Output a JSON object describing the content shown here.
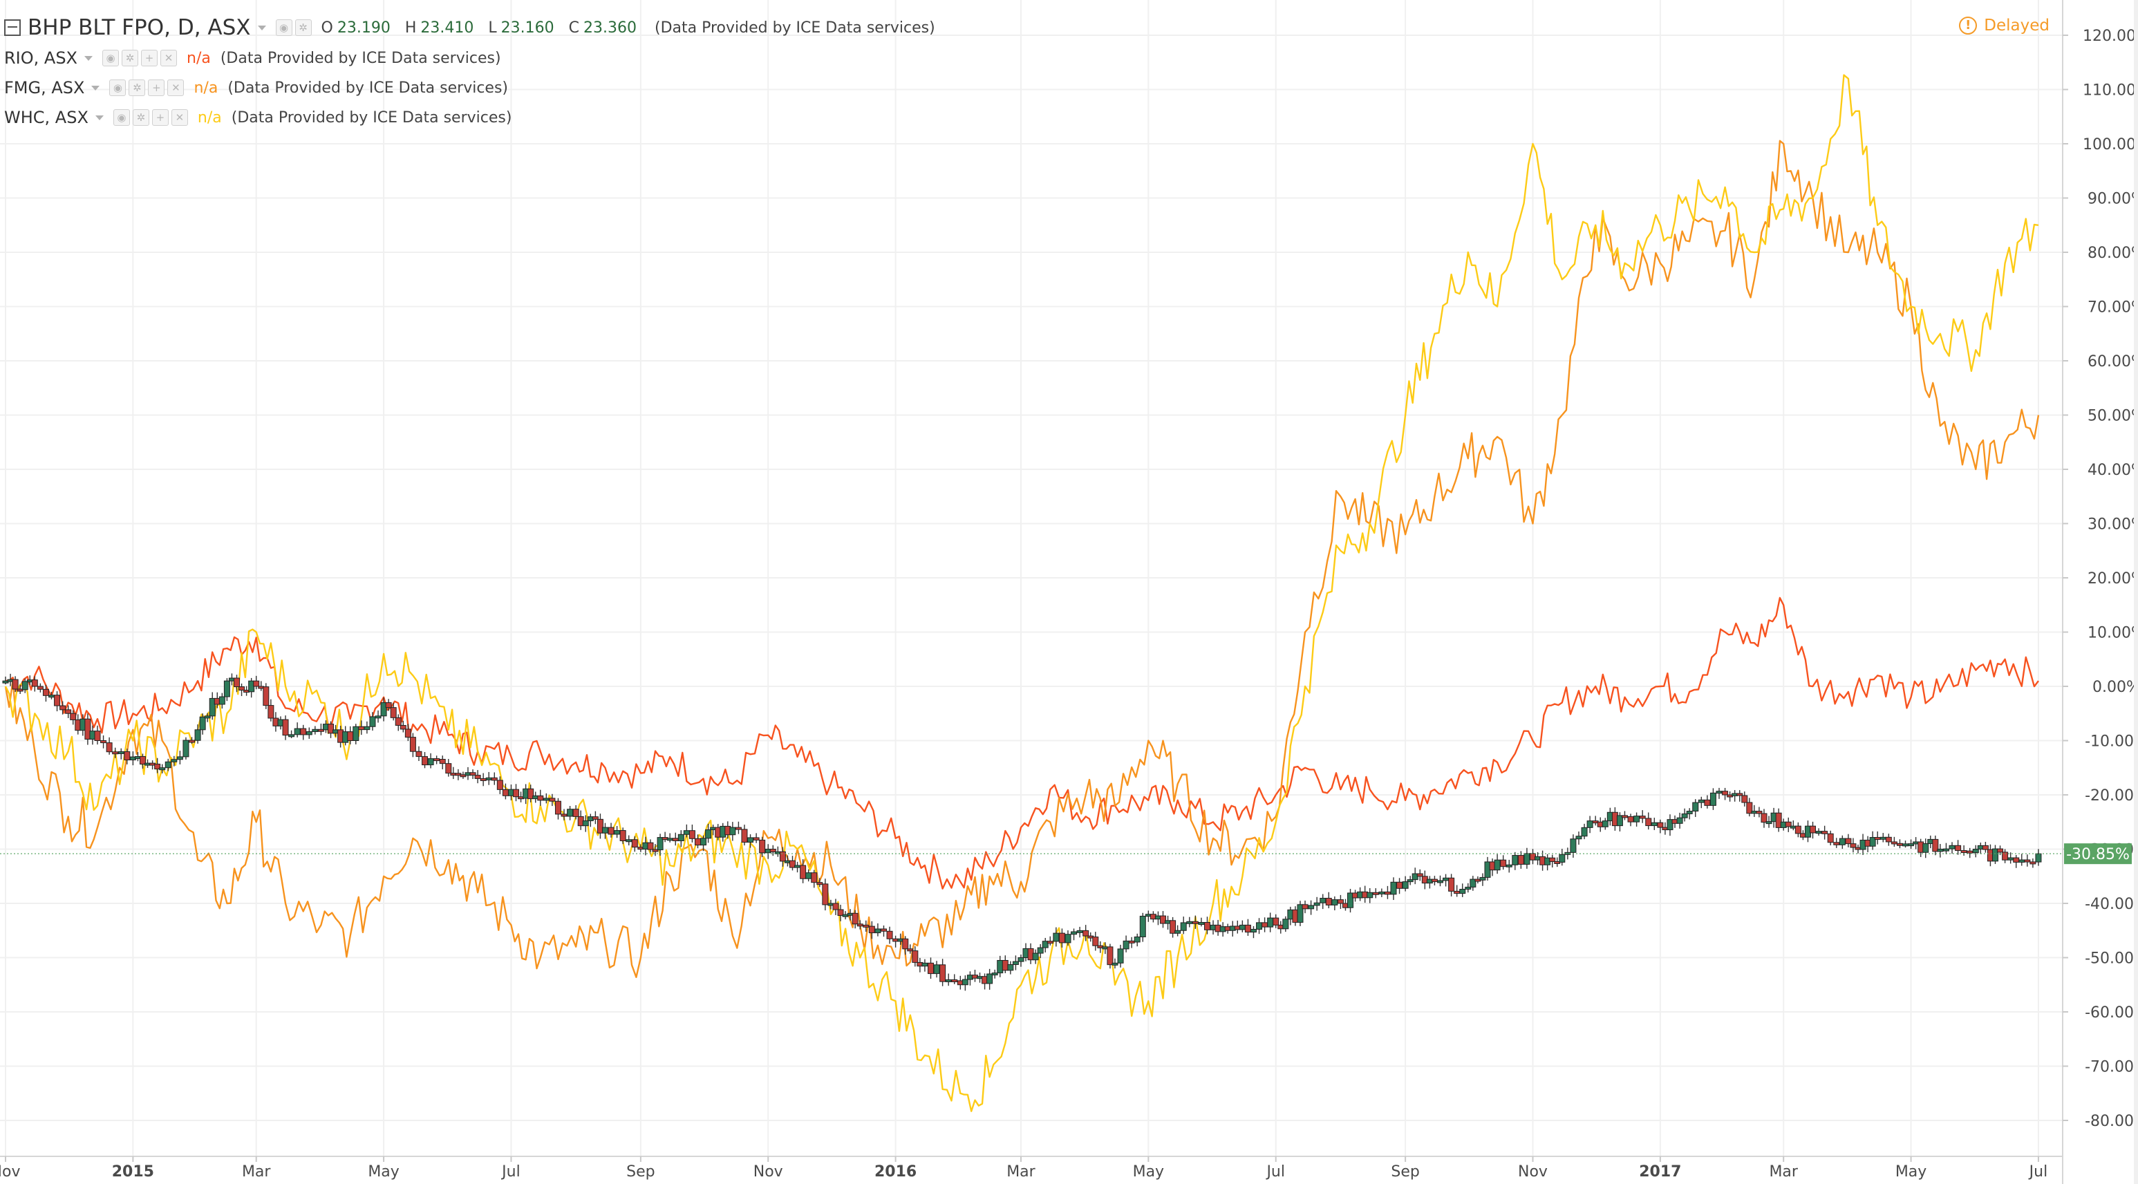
{
  "legend": {
    "main": {
      "symbol": "BHP BLT FPO, D, ASX",
      "o_label": "O",
      "o": "23.190",
      "h_label": "H",
      "h": "23.410",
      "l_label": "L",
      "l": "23.160",
      "c_label": "C",
      "c": "23.360",
      "provider": "(Data Provided by ICE Data services)"
    },
    "comparisons": [
      {
        "symbol": "RIO, ASX",
        "value": "n/a",
        "provider": "(Data Provided by ICE Data services)",
        "color": "#f7531f"
      },
      {
        "symbol": "FMG, ASX",
        "value": "n/a",
        "provider": "(Data Provided by ICE Data services)",
        "color": "#f7931e"
      },
      {
        "symbol": "WHC, ASX",
        "value": "n/a",
        "provider": "(Data Provided by ICE Data services)",
        "color": "#fdcb16"
      }
    ],
    "button_icons": [
      "eye-icon",
      "gear-icon",
      "plus-icon",
      "close-icon"
    ]
  },
  "status": {
    "label": "Delayed",
    "icon": "exclamation-circle-icon",
    "color": "#f59b28"
  },
  "chart_data": {
    "type": "line",
    "scale": "percent",
    "ylim": [
      -85,
      123
    ],
    "yticks": [
      "120.00%",
      "110.00%",
      "100.00%",
      "90.00%",
      "80.00%",
      "70.00%",
      "60.00%",
      "50.00%",
      "40.00%",
      "30.00%",
      "20.00%",
      "10.00%",
      "0.00%",
      "-10.00%",
      "-20.00%",
      "-30.00%",
      "-40.00%",
      "-50.00%",
      "-60.00%",
      "-70.00%",
      "-80.00%"
    ],
    "xlim": [
      "2014-11-01",
      "2017-07-03"
    ],
    "xticks": [
      {
        "label": "Nov",
        "date": "2014-11-01",
        "bold": false
      },
      {
        "label": "2015",
        "date": "2015-01-01",
        "bold": true
      },
      {
        "label": "Mar",
        "date": "2015-03-01",
        "bold": false
      },
      {
        "label": "May",
        "date": "2015-05-01",
        "bold": false
      },
      {
        "label": "Jul",
        "date": "2015-07-01",
        "bold": false
      },
      {
        "label": "Sep",
        "date": "2015-09-01",
        "bold": false
      },
      {
        "label": "Nov",
        "date": "2015-11-01",
        "bold": false
      },
      {
        "label": "2016",
        "date": "2016-01-01",
        "bold": true
      },
      {
        "label": "Mar",
        "date": "2016-03-01",
        "bold": false
      },
      {
        "label": "May",
        "date": "2016-05-01",
        "bold": false
      },
      {
        "label": "Jul",
        "date": "2016-07-01",
        "bold": false
      },
      {
        "label": "Sep",
        "date": "2016-09-01",
        "bold": false
      },
      {
        "label": "Nov",
        "date": "2016-11-01",
        "bold": false
      },
      {
        "label": "2017",
        "date": "2017-01-01",
        "bold": true
      },
      {
        "label": "Mar",
        "date": "2017-03-01",
        "bold": false
      },
      {
        "label": "May",
        "date": "2017-05-01",
        "bold": false
      },
      {
        "label": "Jul",
        "date": "2017-07-01",
        "bold": false
      }
    ],
    "last_value_label": "-30.85%",
    "last_value_color": "#5aa464",
    "grid": true,
    "candle_up_color": "#2e7b5a",
    "candle_down_color": "#c2403a",
    "series": [
      {
        "name": "BHP BLT FPO",
        "style": "candles",
        "x": [
          "2014-11-01",
          "2014-11-15",
          "2014-12-01",
          "2014-12-15",
          "2015-01-01",
          "2015-01-15",
          "2015-02-01",
          "2015-02-15",
          "2015-03-01",
          "2015-03-15",
          "2015-04-01",
          "2015-04-15",
          "2015-05-01",
          "2015-05-15",
          "2015-06-01",
          "2015-06-15",
          "2015-07-01",
          "2015-07-15",
          "2015-08-01",
          "2015-08-15",
          "2015-09-01",
          "2015-09-15",
          "2015-10-01",
          "2015-10-15",
          "2015-11-01",
          "2015-11-15",
          "2015-12-01",
          "2015-12-15",
          "2016-01-01",
          "2016-01-15",
          "2016-02-01",
          "2016-02-15",
          "2016-03-01",
          "2016-03-15",
          "2016-04-01",
          "2016-04-15",
          "2016-05-01",
          "2016-05-15",
          "2016-06-01",
          "2016-06-15",
          "2016-07-01",
          "2016-07-15",
          "2016-08-01",
          "2016-08-15",
          "2016-09-01",
          "2016-09-15",
          "2016-10-01",
          "2016-10-15",
          "2016-11-01",
          "2016-11-15",
          "2016-12-01",
          "2016-12-15",
          "2017-01-01",
          "2017-01-15",
          "2017-02-01",
          "2017-02-15",
          "2017-03-01",
          "2017-03-15",
          "2017-04-01",
          "2017-04-15",
          "2017-05-01",
          "2017-05-15",
          "2017-06-01",
          "2017-06-15",
          "2017-07-01"
        ],
        "y": [
          1,
          0,
          -5,
          -10,
          -13,
          -15,
          -8,
          1,
          0,
          -9,
          -8,
          -10,
          -3,
          -12,
          -16,
          -17,
          -19,
          -21,
          -24,
          -26,
          -30,
          -28,
          -28,
          -26,
          -30,
          -33,
          -40,
          -44,
          -47,
          -51,
          -55,
          -53,
          -50,
          -47,
          -46,
          -51,
          -42,
          -45,
          -44,
          -44,
          -44,
          -41,
          -40,
          -38,
          -36,
          -36,
          -37,
          -32,
          -32,
          -31,
          -25,
          -24,
          -26,
          -23,
          -20,
          -23,
          -25,
          -27,
          -29,
          -28,
          -29,
          -30,
          -30,
          -32,
          -30.85
        ]
      },
      {
        "name": "RIO, ASX",
        "style": "line",
        "color": "#f7531f",
        "x": [
          "2014-11-01",
          "2014-11-15",
          "2014-12-01",
          "2014-12-15",
          "2015-01-01",
          "2015-01-15",
          "2015-02-01",
          "2015-02-15",
          "2015-03-01",
          "2015-03-15",
          "2015-04-01",
          "2015-04-15",
          "2015-05-01",
          "2015-05-15",
          "2015-06-01",
          "2015-06-15",
          "2015-07-01",
          "2015-07-15",
          "2015-08-01",
          "2015-08-15",
          "2015-09-01",
          "2015-09-15",
          "2015-10-01",
          "2015-10-15",
          "2015-11-01",
          "2015-11-15",
          "2015-12-01",
          "2015-12-15",
          "2016-01-01",
          "2016-01-15",
          "2016-02-01",
          "2016-02-15",
          "2016-03-01",
          "2016-03-15",
          "2016-04-01",
          "2016-04-15",
          "2016-05-01",
          "2016-05-15",
          "2016-06-01",
          "2016-06-15",
          "2016-07-01",
          "2016-07-15",
          "2016-08-01",
          "2016-08-15",
          "2016-09-01",
          "2016-09-15",
          "2016-10-01",
          "2016-10-15",
          "2016-11-01",
          "2016-11-15",
          "2016-12-01",
          "2016-12-15",
          "2017-01-01",
          "2017-01-15",
          "2017-02-01",
          "2017-02-15",
          "2017-03-01",
          "2017-03-15",
          "2017-04-01",
          "2017-04-15",
          "2017-05-01",
          "2017-05-15",
          "2017-06-01",
          "2017-06-15",
          "2017-07-01"
        ],
        "y": [
          1,
          2,
          -3,
          -6,
          -5,
          -4,
          1,
          7,
          9,
          -4,
          -5,
          -6,
          -2,
          -7,
          -9,
          -12,
          -13,
          -12,
          -14,
          -15,
          -16,
          -13,
          -17,
          -18,
          -9,
          -13,
          -18,
          -22,
          -28,
          -33,
          -36,
          -32,
          -26,
          -19,
          -24,
          -22,
          -21,
          -21,
          -25,
          -23,
          -20,
          -15,
          -19,
          -19,
          -21,
          -19,
          -16,
          -14,
          -10,
          -3,
          0,
          -2,
          0,
          -1,
          10,
          8,
          15,
          0,
          -1,
          2,
          -2,
          -1,
          3,
          5,
          1
        ]
      },
      {
        "name": "FMG, ASX",
        "style": "line",
        "color": "#f7931e",
        "x": [
          "2014-11-01",
          "2014-11-15",
          "2014-12-01",
          "2014-12-15",
          "2015-01-01",
          "2015-01-15",
          "2015-02-01",
          "2015-02-15",
          "2015-03-01",
          "2015-03-15",
          "2015-04-01",
          "2015-04-15",
          "2015-05-01",
          "2015-05-15",
          "2015-06-01",
          "2015-06-15",
          "2015-07-01",
          "2015-07-15",
          "2015-08-01",
          "2015-08-15",
          "2015-09-01",
          "2015-09-15",
          "2015-10-01",
          "2015-10-15",
          "2015-11-01",
          "2015-11-15",
          "2015-12-01",
          "2015-12-15",
          "2016-01-01",
          "2016-01-15",
          "2016-02-01",
          "2016-02-15",
          "2016-03-01",
          "2016-03-15",
          "2016-04-01",
          "2016-04-15",
          "2016-05-01",
          "2016-05-15",
          "2016-06-01",
          "2016-06-15",
          "2016-07-01",
          "2016-07-15",
          "2016-08-01",
          "2016-08-15",
          "2016-09-01",
          "2016-09-15",
          "2016-10-01",
          "2016-10-15",
          "2016-11-01",
          "2016-11-15",
          "2016-12-01",
          "2016-12-15",
          "2017-01-01",
          "2017-01-15",
          "2017-02-01",
          "2017-02-15",
          "2017-03-01",
          "2017-03-15",
          "2017-04-01",
          "2017-04-15",
          "2017-05-01",
          "2017-05-15",
          "2017-06-01",
          "2017-06-15",
          "2017-07-01"
        ],
        "y": [
          0,
          -12,
          -24,
          -26,
          -8,
          -10,
          -32,
          -40,
          -25,
          -40,
          -44,
          -46,
          -35,
          -28,
          -32,
          -38,
          -44,
          -50,
          -48,
          -47,
          -50,
          -35,
          -30,
          -46,
          -28,
          -30,
          -33,
          -44,
          -50,
          -46,
          -43,
          -35,
          -36,
          -25,
          -20,
          -22,
          -10,
          -18,
          -28,
          -30,
          -24,
          10,
          35,
          30,
          28,
          35,
          42,
          46,
          30,
          50,
          85,
          75,
          78,
          82,
          84,
          75,
          100,
          90,
          80,
          80,
          70,
          48,
          40,
          45,
          50
        ]
      },
      {
        "name": "WHC, ASX",
        "style": "line",
        "color": "#fdcb16",
        "x": [
          "2014-11-01",
          "2014-11-15",
          "2014-12-01",
          "2014-12-15",
          "2015-01-01",
          "2015-01-15",
          "2015-02-01",
          "2015-02-15",
          "2015-03-01",
          "2015-03-15",
          "2015-04-01",
          "2015-04-15",
          "2015-05-01",
          "2015-05-15",
          "2015-06-01",
          "2015-06-15",
          "2015-07-01",
          "2015-07-15",
          "2015-08-01",
          "2015-08-15",
          "2015-09-01",
          "2015-09-15",
          "2015-10-01",
          "2015-10-15",
          "2015-11-01",
          "2015-11-15",
          "2015-12-01",
          "2015-12-15",
          "2016-01-01",
          "2016-01-15",
          "2016-02-01",
          "2016-02-15",
          "2016-03-01",
          "2016-03-15",
          "2016-04-01",
          "2016-04-15",
          "2016-05-01",
          "2016-05-15",
          "2016-06-01",
          "2016-06-15",
          "2016-07-01",
          "2016-07-15",
          "2016-08-01",
          "2016-08-15",
          "2016-09-01",
          "2016-09-15",
          "2016-10-01",
          "2016-10-15",
          "2016-11-01",
          "2016-11-15",
          "2016-12-01",
          "2016-12-15",
          "2017-01-01",
          "2017-01-15",
          "2017-02-01",
          "2017-02-15",
          "2017-03-01",
          "2017-03-15",
          "2017-04-01",
          "2017-04-15",
          "2017-05-01",
          "2017-05-15",
          "2017-06-01",
          "2017-06-15",
          "2017-07-01"
        ],
        "y": [
          0,
          -5,
          -12,
          -22,
          -10,
          -15,
          -8,
          -5,
          10,
          0,
          -3,
          -10,
          6,
          2,
          -8,
          -12,
          -20,
          -22,
          -24,
          -27,
          -30,
          -33,
          -28,
          -30,
          -33,
          -30,
          -42,
          -50,
          -58,
          -68,
          -75,
          -72,
          -55,
          -50,
          -45,
          -55,
          -58,
          -50,
          -40,
          -35,
          -25,
          0,
          25,
          30,
          50,
          65,
          80,
          70,
          100,
          75,
          85,
          78,
          85,
          88,
          92,
          80,
          88,
          90,
          112,
          85,
          70,
          65,
          62,
          78,
          85
        ]
      }
    ]
  }
}
